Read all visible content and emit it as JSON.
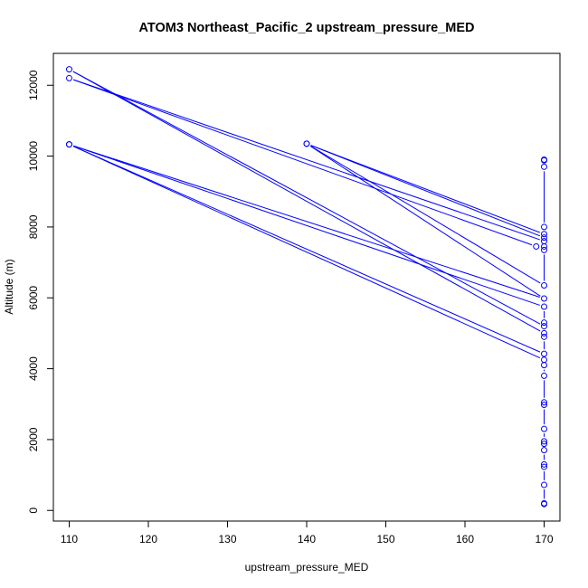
{
  "chart_data": {
    "type": "scatter",
    "title": "ATOM3 Northeast_Pacific_2 upstream_pressure_MED",
    "xlabel": "upstream_pressure_MED",
    "ylabel": "Altitude (m)",
    "xlim": [
      108,
      172
    ],
    "ylim": [
      -300,
      12900
    ],
    "xticks": [
      110,
      120,
      130,
      140,
      150,
      160,
      170
    ],
    "yticks": [
      0,
      2000,
      4000,
      6000,
      8000,
      10000,
      12000
    ],
    "grid": false,
    "series": [
      {
        "color": "#0000ff",
        "marker": "open-circle",
        "line": true,
        "points": [
          {
            "x": 170,
            "y": 180
          },
          {
            "x": 170,
            "y": 200
          },
          {
            "x": 170,
            "y": 720
          },
          {
            "x": 170,
            "y": 1230
          },
          {
            "x": 170,
            "y": 1300
          },
          {
            "x": 170,
            "y": 1700
          },
          {
            "x": 170,
            "y": 1880
          },
          {
            "x": 170,
            "y": 1950
          },
          {
            "x": 170,
            "y": 2300
          },
          {
            "x": 170,
            "y": 2980
          },
          {
            "x": 170,
            "y": 3050
          },
          {
            "x": 170,
            "y": 3800
          },
          {
            "x": 170,
            "y": 4100
          },
          {
            "x": 170,
            "y": 4250
          },
          {
            "x": 110,
            "y": 10330
          },
          {
            "x": 170,
            "y": 4420
          },
          {
            "x": 170,
            "y": 4900
          },
          {
            "x": 170,
            "y": 5000
          },
          {
            "x": 110,
            "y": 12450
          },
          {
            "x": 170,
            "y": 5200
          },
          {
            "x": 170,
            "y": 5300
          },
          {
            "x": 170,
            "y": 5750
          },
          {
            "x": 110,
            "y": 10330
          },
          {
            "x": 170,
            "y": 5980
          },
          {
            "x": 140,
            "y": 10350
          },
          {
            "x": 170,
            "y": 6350
          },
          {
            "x": 170,
            "y": 7350
          },
          {
            "x": 170,
            "y": 7450
          },
          {
            "x": 169,
            "y": 7450
          },
          {
            "x": 110,
            "y": 12200
          },
          {
            "x": 170,
            "y": 7600
          },
          {
            "x": 170,
            "y": 7700
          },
          {
            "x": 140,
            "y": 10350
          },
          {
            "x": 170,
            "y": 7800
          },
          {
            "x": 170,
            "y": 8000
          },
          {
            "x": 170,
            "y": 9700
          },
          {
            "x": 170,
            "y": 9880
          },
          {
            "x": 170,
            "y": 9900
          }
        ]
      }
    ]
  }
}
